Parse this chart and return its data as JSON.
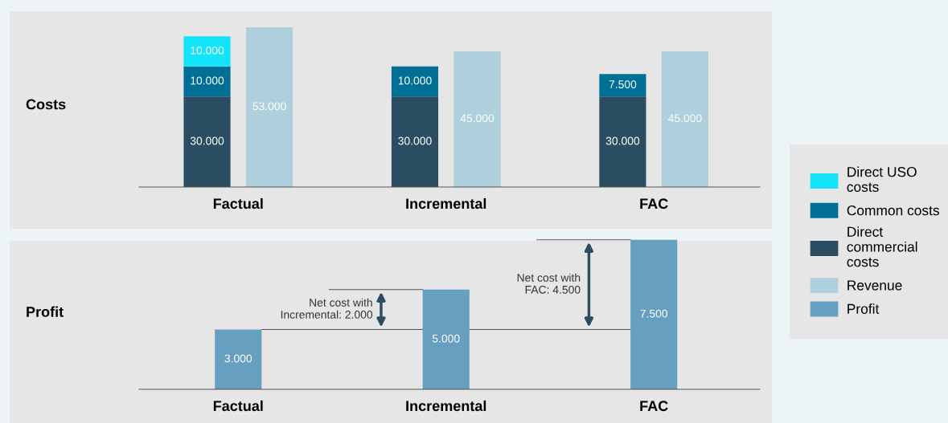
{
  "chart_data": [
    {
      "type": "bar",
      "ylabel": "Costs",
      "stacked": true,
      "legend": "right",
      "categories": [
        "Factual",
        "Incremental",
        "FAC"
      ],
      "series": [
        {
          "name": "Direct\ncommercial\ncosts",
          "color": "#2b4d62",
          "values": [
            30000,
            30000,
            30000
          ],
          "value_labels": [
            "30.000",
            "30.000",
            "30.000"
          ]
        },
        {
          "name": "Common costs",
          "color": "#006f96",
          "values": [
            10000,
            10000,
            7500
          ],
          "value_labels": [
            "10.000",
            "10.000",
            "7.500"
          ]
        },
        {
          "name": "Direct USO\ncosts",
          "color": "#12e4fa",
          "values": [
            10000,
            null,
            null
          ],
          "value_labels": [
            "10.000",
            null,
            null
          ]
        }
      ]
    },
    {
      "type": "bar",
      "tick_labels": false,
      "legend": "right",
      "categories": [
        "Factual",
        "Incremental",
        "FAC"
      ],
      "series": [
        {
          "name": "Revenue",
          "color": "#aecfdb",
          "values": [
            53000,
            45000,
            45000
          ],
          "value_labels": [
            "53.000",
            "45.000",
            "45.000"
          ]
        }
      ]
    },
    {
      "type": "bar",
      "ylabel": "Profit",
      "legend": "right",
      "categories": [
        "Factual",
        "Incremental",
        "FAC"
      ],
      "series": [
        {
          "name": "Profit",
          "color": "#669fbf",
          "values": [
            3000,
            5000,
            7500
          ],
          "value_labels": [
            "3.000",
            "5.000",
            "7.500"
          ]
        }
      ],
      "ref_lines": [
        {
          "axis": "y",
          "value": 3000
        },
        {
          "axis": "y",
          "value": 5000
        },
        {
          "axis": "y",
          "value": 7500
        }
      ],
      "annotations": [
        "Net cost with\nIncremental: 2.000",
        "Net cost with\nFAC: 4.500"
      ]
    }
  ]
}
